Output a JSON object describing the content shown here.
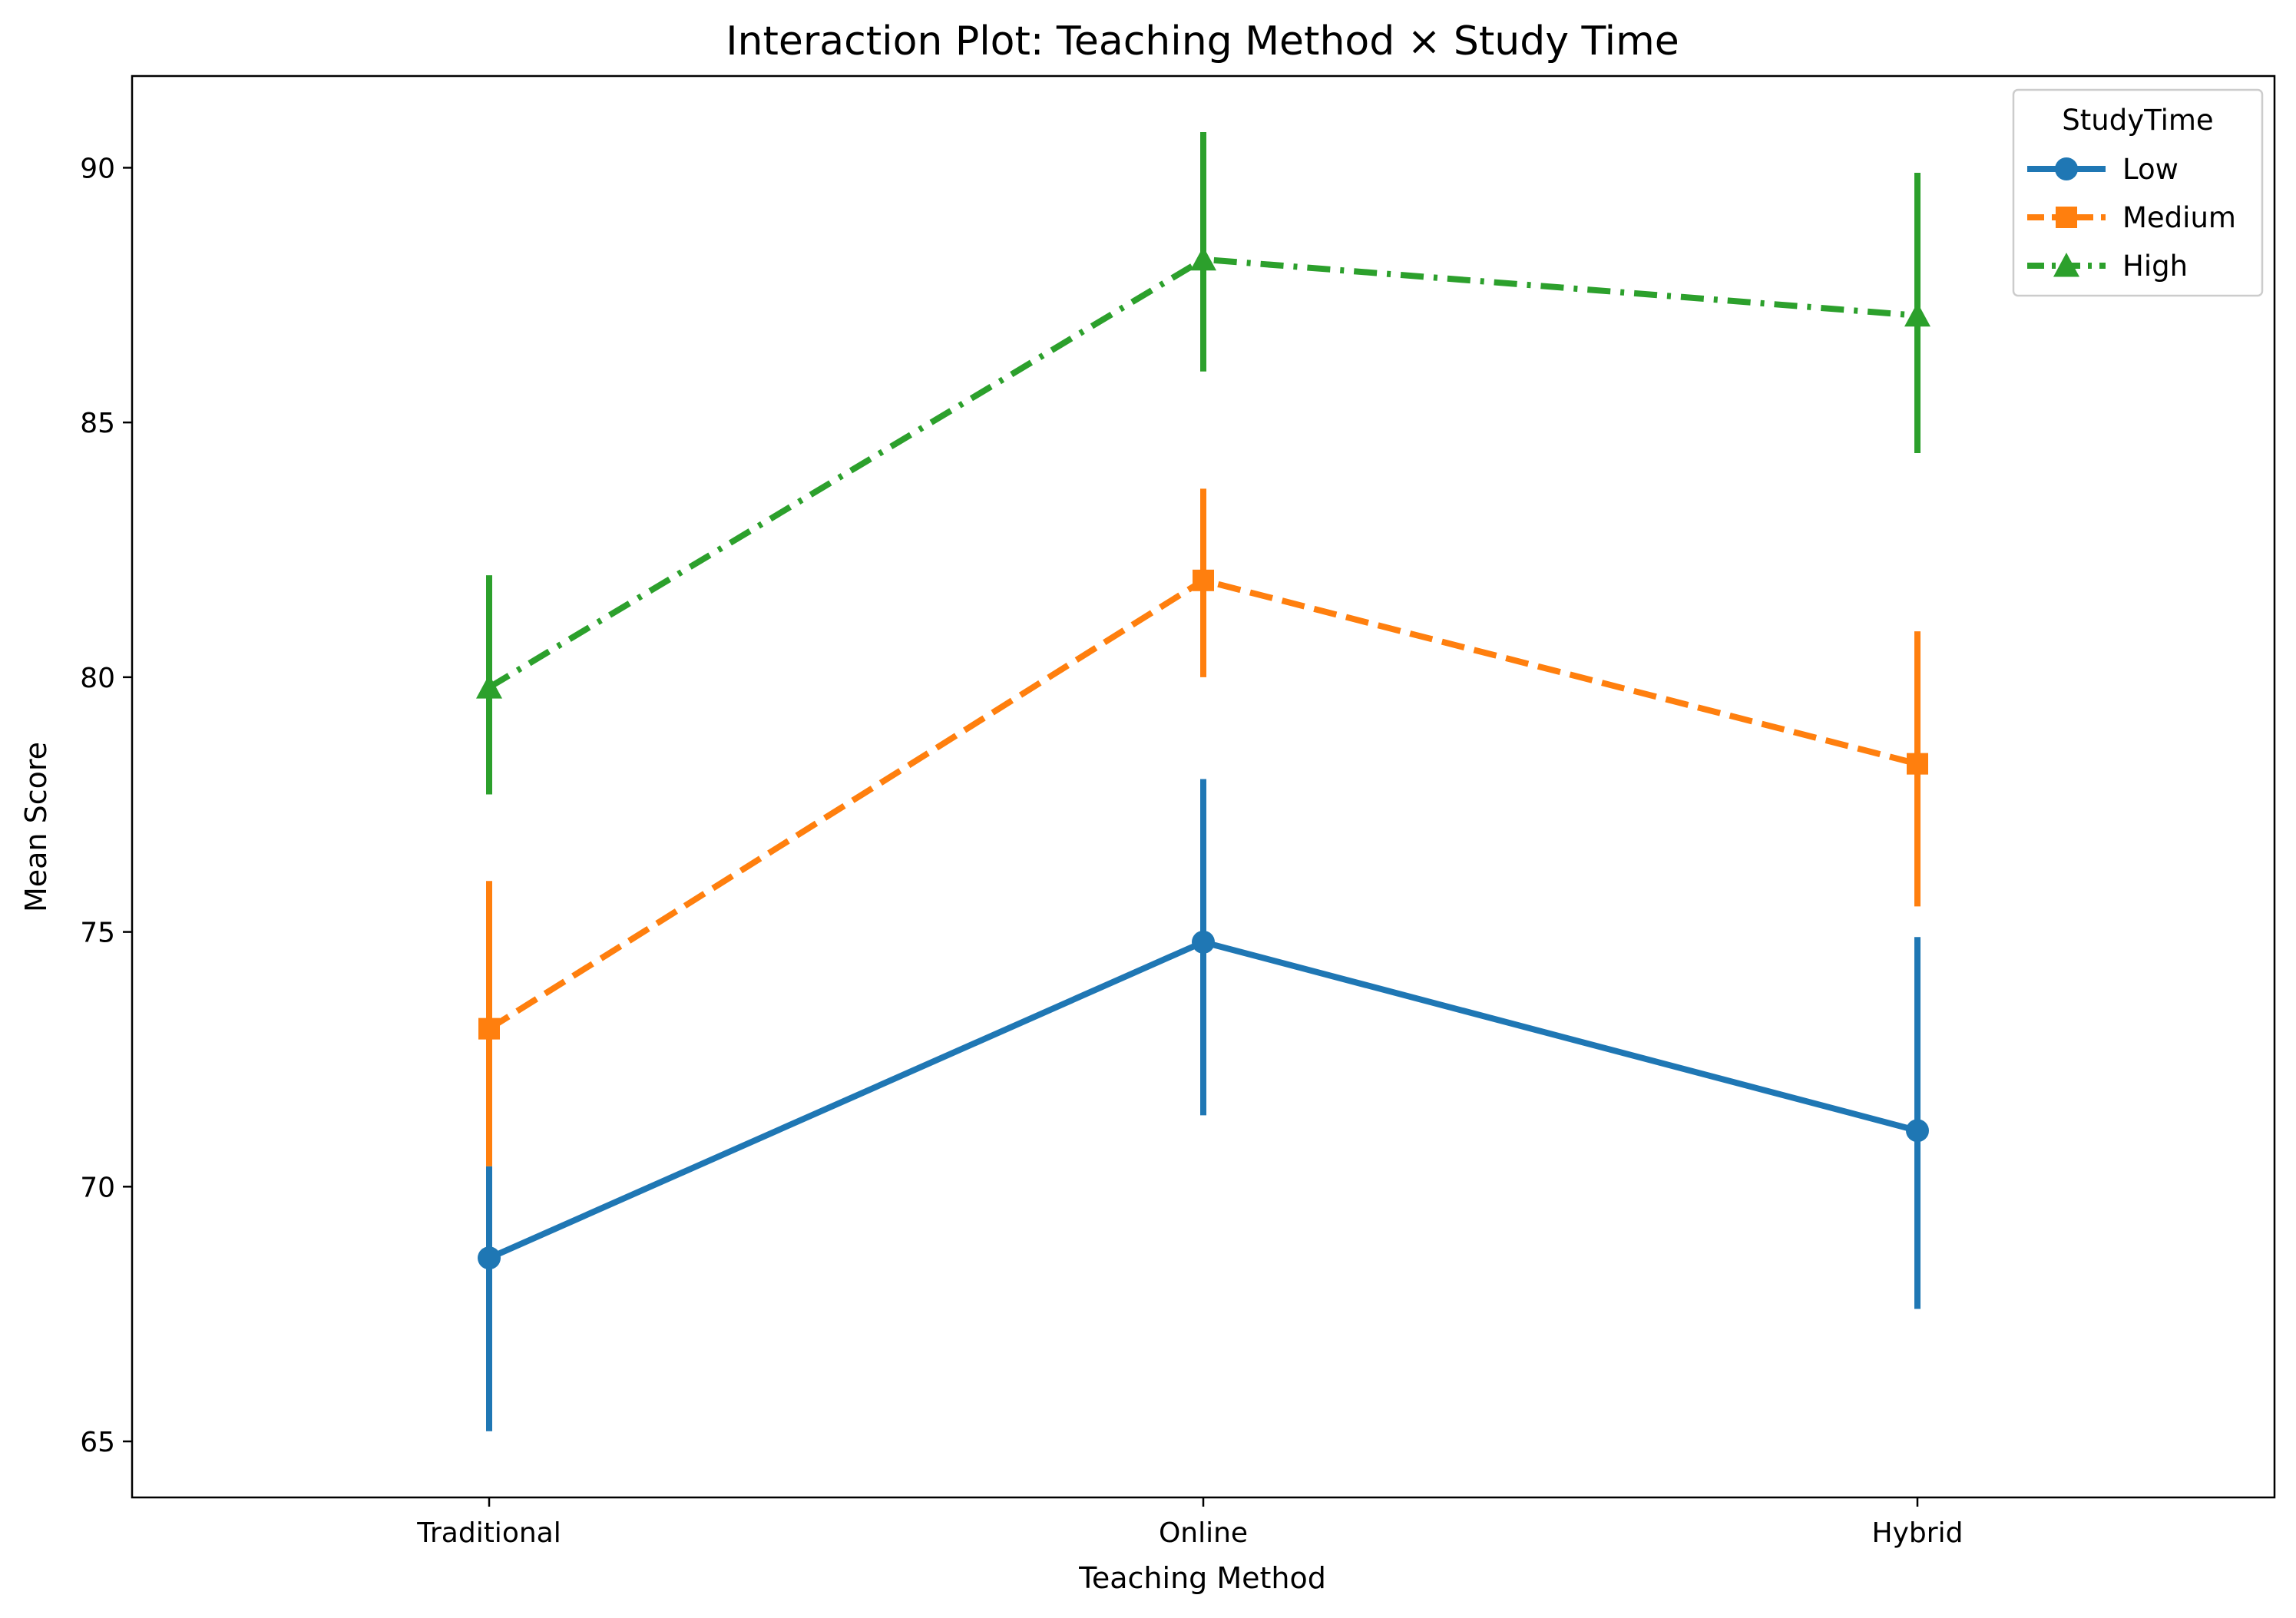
{
  "chart_data": {
    "type": "line",
    "title": "Interaction Plot: Teaching Method × Study Time",
    "xlabel": "Teaching Method",
    "ylabel": "Mean Score",
    "categories": [
      "Traditional",
      "Online",
      "Hybrid"
    ],
    "ylim": [
      63.9,
      91.8
    ],
    "yticks": [
      65,
      70,
      75,
      80,
      85,
      90
    ],
    "grid": false,
    "legend": {
      "title": "StudyTime",
      "placement": "top-right"
    },
    "series": [
      {
        "name": "Low",
        "color": "#1f77b4",
        "marker": "circle",
        "linestyle": "solid",
        "values": [
          68.6,
          74.8,
          71.1
        ],
        "ci_low": [
          65.2,
          71.4,
          67.6
        ],
        "ci_high": [
          70.4,
          78.0,
          74.9
        ]
      },
      {
        "name": "Medium",
        "color": "#ff7f0e",
        "marker": "square",
        "linestyle": "dashed",
        "values": [
          73.1,
          81.9,
          78.3
        ],
        "ci_low": [
          70.4,
          80.0,
          75.5
        ],
        "ci_high": [
          76.0,
          83.7,
          80.9
        ]
      },
      {
        "name": "High",
        "color": "#2ca02c",
        "marker": "triangle",
        "linestyle": "dashdot",
        "values": [
          79.8,
          88.2,
          87.1
        ],
        "ci_low": [
          77.7,
          86.0,
          84.4
        ],
        "ci_high": [
          82.0,
          90.7,
          89.9
        ]
      }
    ]
  }
}
